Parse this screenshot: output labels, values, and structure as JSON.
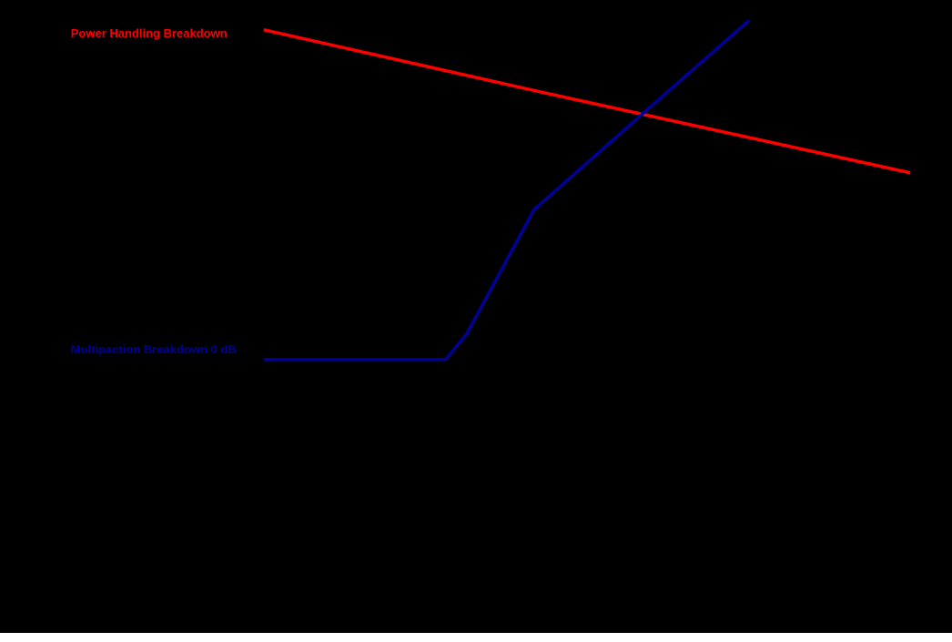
{
  "chart_data": {
    "type": "line",
    "xlim": [
      0,
      100
    ],
    "ylim": [
      0,
      100
    ],
    "series": [
      {
        "name": "Power Handling Breakdown",
        "color": "#ff0000",
        "x": [
          27.7,
          56.4,
          95.6
        ],
        "values": [
          95.3,
          85.6,
          72.7
        ]
      },
      {
        "name": "Multipaction Breakdown 0 dB",
        "color": "#000099",
        "x": [
          27.7,
          46.8,
          49.0,
          56.1,
          67.4,
          78.7
        ],
        "values": [
          43.2,
          43.2,
          47.2,
          66.9,
          81.9,
          96.8
        ]
      }
    ]
  }
}
